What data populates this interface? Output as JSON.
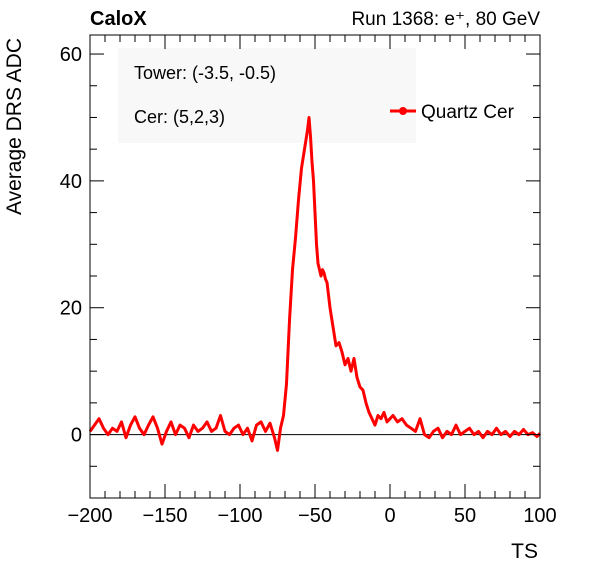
{
  "header": {
    "experiment": "CaloX",
    "run_info": "Run 1368: e⁺, 80 GeV"
  },
  "annotations": {
    "tower": "Tower: (-3.5, -0.5)",
    "cer": "Cer: (5,2,3)"
  },
  "colors": {
    "series": "#ff0000",
    "axis": "#000000",
    "zero_line": "#000000",
    "background": "#ffffff"
  },
  "chart_data": {
    "type": "line",
    "title": "",
    "xlabel": "TS",
    "ylabel": "Average DRS ADC",
    "xlim": [
      -200,
      100
    ],
    "ylim": [
      -10,
      63
    ],
    "grid": false,
    "legend_position": "top-right",
    "x_ticks": [
      -200,
      -150,
      -100,
      -50,
      0,
      50,
      100
    ],
    "x_tick_labels": [
      "−200",
      "−150",
      "−100",
      "−50",
      "0",
      "50",
      "100"
    ],
    "y_ticks": [
      0,
      20,
      40,
      60
    ],
    "y_tick_labels": [
      "0",
      "20",
      "40",
      "60"
    ],
    "reference_lines": [
      {
        "axis": "y",
        "value": 0
      }
    ],
    "series": [
      {
        "name": "Quartz Cer",
        "x": [
          -200,
          -197,
          -194,
          -191,
          -188,
          -185,
          -182,
          -179,
          -176,
          -173,
          -170,
          -167,
          -164,
          -161,
          -158,
          -155,
          -152,
          -149,
          -146,
          -143,
          -140,
          -137,
          -134,
          -131,
          -128,
          -125,
          -122,
          -119,
          -116,
          -113,
          -110,
          -107,
          -104,
          -101,
          -98,
          -95,
          -92,
          -89,
          -86,
          -83,
          -80,
          -77,
          -75,
          -73,
          -71,
          -69,
          -67,
          -65,
          -63,
          -61,
          -59,
          -57,
          -55,
          -54,
          -53,
          -52,
          -51,
          -50,
          -49,
          -48,
          -47,
          -46,
          -45,
          -44,
          -43,
          -42,
          -41,
          -40,
          -38,
          -36,
          -34,
          -32,
          -30,
          -28,
          -26,
          -24,
          -22,
          -20,
          -18,
          -16,
          -14,
          -12,
          -10,
          -8,
          -6,
          -4,
          -2,
          0,
          2,
          5,
          8,
          11,
          14,
          17,
          20,
          23,
          26,
          29,
          32,
          35,
          38,
          41,
          44,
          47,
          50,
          53,
          56,
          59,
          62,
          65,
          68,
          71,
          74,
          77,
          80,
          83,
          86,
          89,
          92,
          95,
          98,
          100
        ],
        "y": [
          0.5,
          1.5,
          2.5,
          1.0,
          0.0,
          1.0,
          0.5,
          2.0,
          -0.5,
          1.5,
          2.8,
          1.0,
          0.0,
          1.5,
          2.8,
          1.0,
          -1.5,
          0.5,
          2.0,
          0.0,
          1.5,
          1.0,
          -0.5,
          1.5,
          0.5,
          1.0,
          2.0,
          0.5,
          1.0,
          3.0,
          0.5,
          0.0,
          1.0,
          1.5,
          0.0,
          1.0,
          -1.0,
          1.5,
          2.0,
          0.5,
          1.8,
          -0.5,
          -2.5,
          1.0,
          3.0,
          8.0,
          18.0,
          26.0,
          31.0,
          37.0,
          42.0,
          45.0,
          48.0,
          50.0,
          47.0,
          43.0,
          40.0,
          35.0,
          30.0,
          27.0,
          26.0,
          25.0,
          26.0,
          25.5,
          24.5,
          24.0,
          22.0,
          20.0,
          17.0,
          14.0,
          14.5,
          13.0,
          11.0,
          12.0,
          10.0,
          12.0,
          9.0,
          7.5,
          7.0,
          5.0,
          3.5,
          2.5,
          1.5,
          3.0,
          2.5,
          3.5,
          2.0,
          2.5,
          3.0,
          2.0,
          2.5,
          1.5,
          1.0,
          0.5,
          2.5,
          0.0,
          -0.5,
          0.5,
          1.0,
          -0.5,
          0.5,
          0.0,
          1.5,
          0.0,
          0.5,
          1.0,
          0.0,
          0.5,
          -0.5,
          0.5,
          0.0,
          1.0,
          0.0,
          0.5,
          -0.3,
          0.5,
          0.0,
          0.8,
          0.0,
          0.3,
          -0.3,
          0.2
        ]
      }
    ]
  }
}
